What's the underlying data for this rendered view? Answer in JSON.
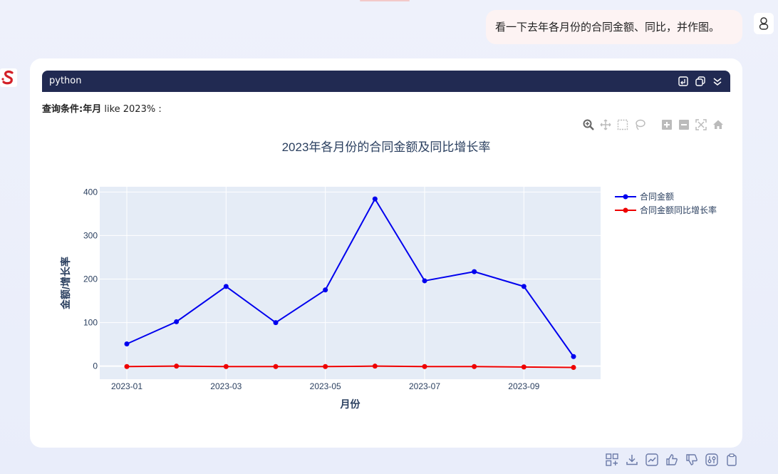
{
  "user_message": "看一下去年各月份的合同金额、同比，并作图。",
  "code_block": {
    "language": "python",
    "query_label": "查询条件:",
    "query_field": "年月",
    "query_condition": " like 2023% :"
  },
  "chart_data": {
    "type": "line",
    "title": "2023年各月份的合同金额及同比增长率",
    "xlabel": "月份",
    "ylabel": "金额/增长率",
    "x": [
      "2023-01",
      "2023-02",
      "2023-03",
      "2023-04",
      "2023-05",
      "2023-06",
      "2023-07",
      "2023-08",
      "2023-09",
      "2023-10"
    ],
    "x_ticks": [
      "2023-01",
      "2023-03",
      "2023-05",
      "2023-07",
      "2023-09"
    ],
    "y_ticks": [
      0,
      100,
      200,
      300,
      400
    ],
    "ylim": [
      -30,
      412
    ],
    "grid": true,
    "legend_position": "top-right",
    "series": [
      {
        "name": "合同金额",
        "color": "#0000ee",
        "values": [
          51,
          102,
          183,
          100,
          175,
          384,
          196,
          217,
          183,
          22
        ]
      },
      {
        "name": "合同金额同比增长率",
        "color": "#ee0000",
        "values": [
          -1,
          0,
          -1,
          -1,
          -1,
          0,
          -1,
          -1,
          -2,
          -3
        ]
      }
    ]
  },
  "colors": {
    "plot_bg": "#e5ecf6",
    "header_bg": "#212a52",
    "axis_text": "#2a3f5f"
  }
}
